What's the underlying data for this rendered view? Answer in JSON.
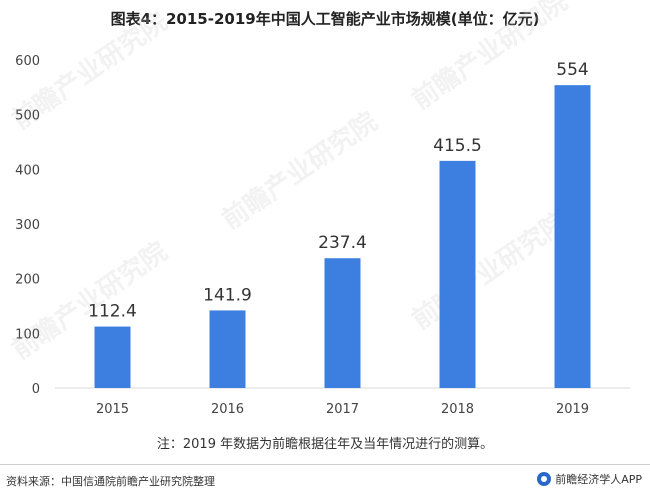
{
  "title": "图表4：2015-2019年中国人工智能产业市场规模(单位：亿元)",
  "note": "注：2019 年数据为前瞻根据往年及当年情况进行的测算。",
  "source": "资料来源：中国信通院前瞻产业研究院整理",
  "brand": "前瞻经济学人APP",
  "watermark_text": "前瞻产业研究院",
  "colors": {
    "bar": "#3d7fe0",
    "axis": "#d9d9d9",
    "text": "#444444"
  },
  "chart_data": {
    "type": "bar",
    "title": "图表4：2015-2019年中国人工智能产业市场规模(单位：亿元)",
    "xlabel": "",
    "ylabel": "",
    "categories": [
      "2015",
      "2016",
      "2017",
      "2018",
      "2019"
    ],
    "values": [
      112.4,
      141.9,
      237.4,
      415.5,
      554
    ],
    "value_labels": [
      "112.4",
      "141.9",
      "237.4",
      "415.5",
      "554"
    ],
    "ylim": [
      0,
      600
    ],
    "yticks": [
      0,
      100,
      200,
      300,
      400,
      500,
      600
    ],
    "grid": false,
    "legend": "none"
  }
}
